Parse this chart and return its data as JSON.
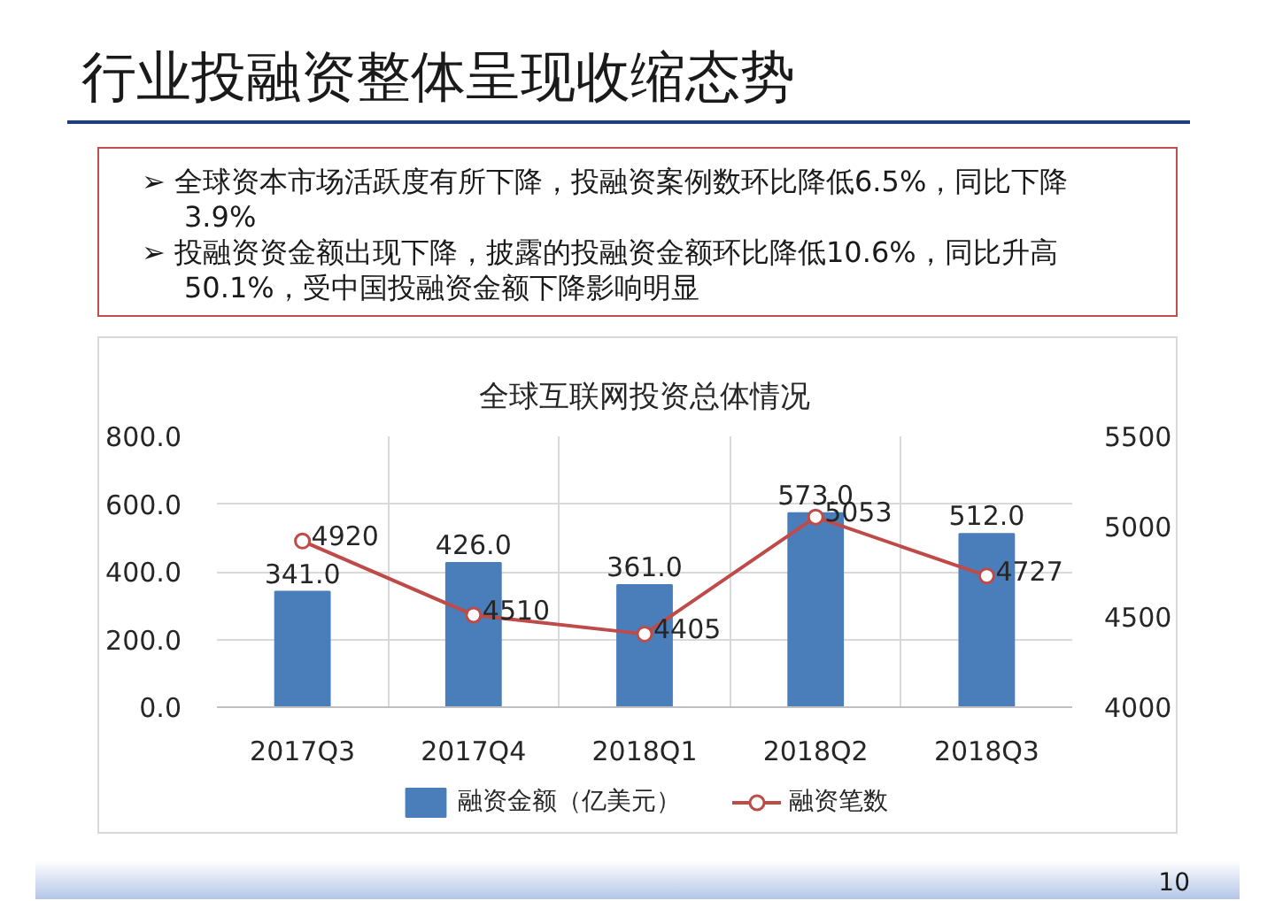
{
  "chart_data": {
    "type": "bar",
    "title": "行业投融资整体呈现收缩态势",
    "subtitle": "全球互联网投资总体情况",
    "annotations": [
      "➢ 全球资本市场活跃度有所下降，投融资案例数环比降低6.5%，同比下降3.9%",
      "➢ 投融资资金额出现下降，披露的投融资金额环比降低10.6%，同比升高50.1%，受中国投融资金额下降影响明显",
      "10"
    ],
    "categories": [
      "2017Q3",
      "2017Q4",
      "2018Q1",
      "2018Q2",
      "2018Q3"
    ],
    "series": [
      {
        "name": "融资金额（亿美元）",
        "color": "#4a7ebb",
        "values": [
          341,
          426,
          361,
          573,
          512
        ],
        "value_labels": [
          "341.0",
          "426.0",
          "361.0",
          "573.0",
          "512.0"
        ]
      },
      {
        "name": "融资笔数",
        "type": "line",
        "axis": "y2",
        "color": "#be4b48",
        "marker": "circle",
        "values": [
          4920,
          4510,
          4405,
          5053,
          4727
        ],
        "value_labels": [
          "4920",
          "4510",
          "4405",
          "5053",
          "4727"
        ]
      }
    ],
    "ylim": [
      0,
      800
    ],
    "yticks": [
      {
        "value": 0,
        "label": "0.0"
      },
      {
        "value": 200,
        "label": "200.0"
      },
      {
        "value": 400,
        "label": "400.0"
      },
      {
        "value": 600,
        "label": "600.0"
      },
      {
        "value": 800,
        "label": "800.0"
      }
    ],
    "y2lim": [
      4000,
      5500
    ],
    "y2ticks": [
      4000,
      4500,
      5000,
      5500
    ],
    "grid": true,
    "legend": "bottom"
  }
}
